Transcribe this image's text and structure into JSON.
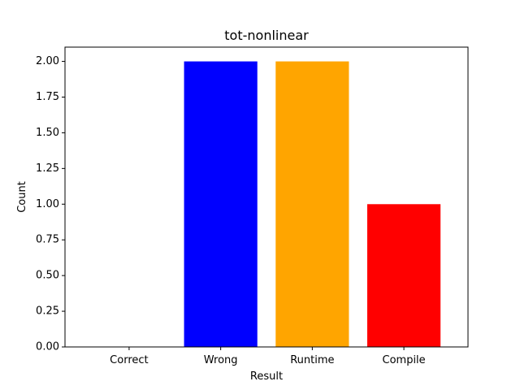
{
  "chart_data": {
    "type": "bar",
    "title": "tot-nonlinear",
    "xlabel": "Result",
    "ylabel": "Count",
    "categories": [
      "Correct",
      "Wrong",
      "Runtime",
      "Compile"
    ],
    "values": [
      0,
      2,
      2,
      1
    ],
    "colors": [
      "#008000",
      "#0000ff",
      "#ffa500",
      "#ff0000"
    ],
    "ylim": [
      0,
      2.1
    ],
    "yticks": [
      "0.00",
      "0.25",
      "0.50",
      "0.75",
      "1.00",
      "1.25",
      "1.50",
      "1.75",
      "2.00"
    ],
    "grid": false,
    "legend": false
  }
}
